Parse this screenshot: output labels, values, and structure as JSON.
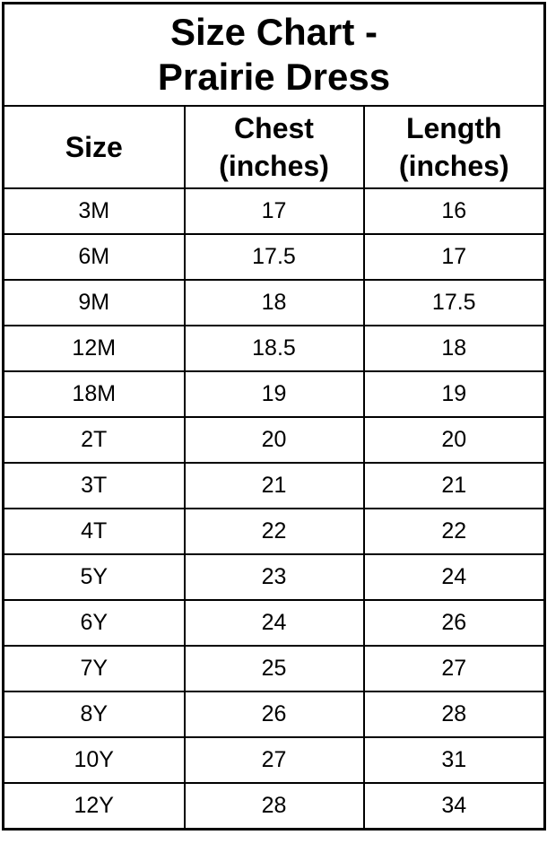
{
  "page": {
    "background_color": "#ffffff",
    "border_color": "#000000",
    "text_color": "#000000"
  },
  "chart_data": {
    "type": "table",
    "title": "Size Chart - Prairie Dress",
    "title_display": "Size Chart -\nPrairie Dress",
    "columns": [
      "Size",
      "Chest (inches)",
      "Length (inches)"
    ],
    "columns_display": [
      "Size",
      "Chest\n(inches)",
      "Length\n(inches)"
    ],
    "rows": [
      [
        "3M",
        "17",
        "16"
      ],
      [
        "6M",
        "17.5",
        "17"
      ],
      [
        "9M",
        "18",
        "17.5"
      ],
      [
        "12M",
        "18.5",
        "18"
      ],
      [
        "18M",
        "19",
        "19"
      ],
      [
        "2T",
        "20",
        "20"
      ],
      [
        "3T",
        "21",
        "21"
      ],
      [
        "4T",
        "22",
        "22"
      ],
      [
        "5Y",
        "23",
        "24"
      ],
      [
        "6Y",
        "24",
        "26"
      ],
      [
        "7Y",
        "25",
        "27"
      ],
      [
        "8Y",
        "26",
        "28"
      ],
      [
        "10Y",
        "27",
        "31"
      ],
      [
        "12Y",
        "28",
        "34"
      ]
    ]
  }
}
